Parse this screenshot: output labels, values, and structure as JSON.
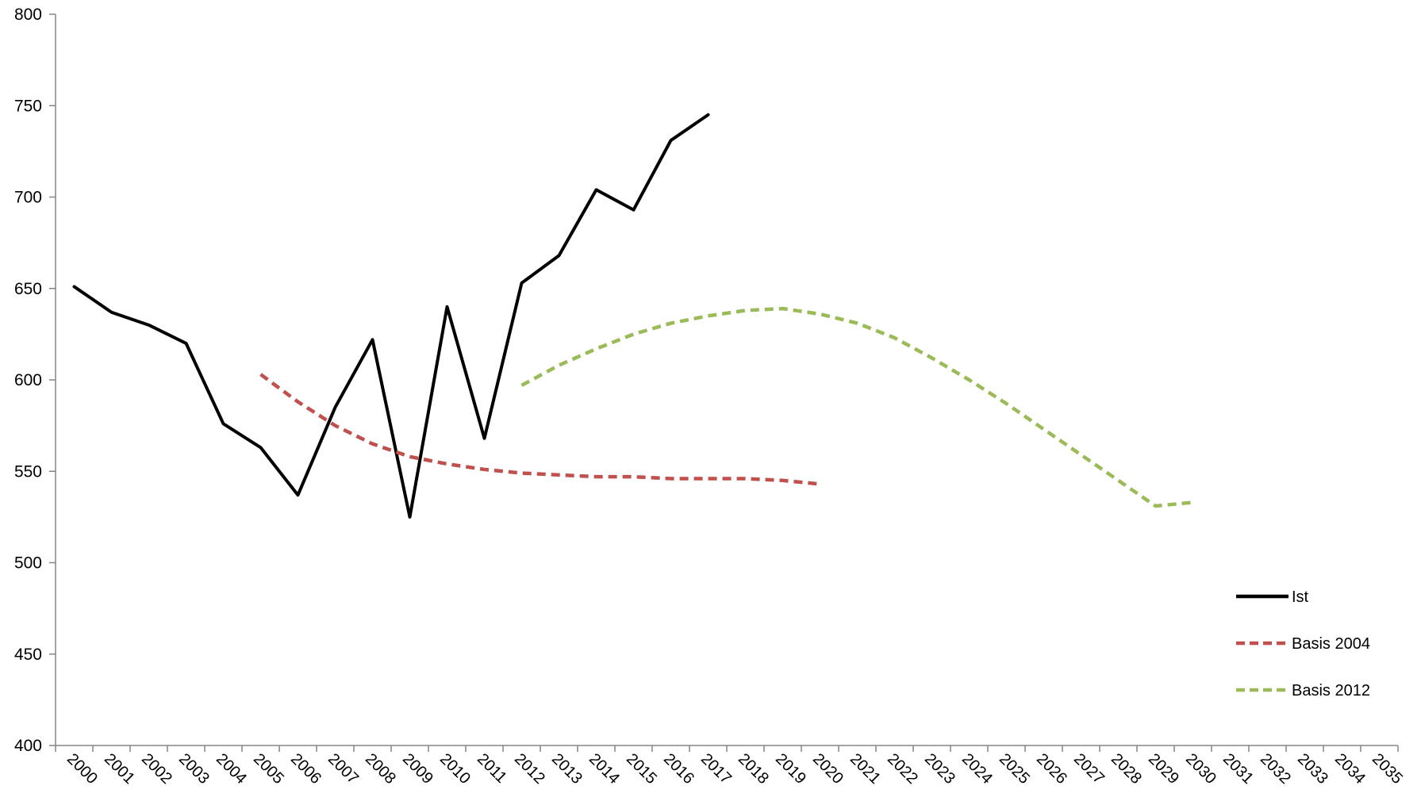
{
  "chart_data": {
    "type": "line",
    "title": "",
    "xlabel": "",
    "ylabel": "",
    "ylim": [
      400,
      800
    ],
    "yticks": [
      "400",
      "450",
      "500",
      "550",
      "600",
      "650",
      "700",
      "750",
      "800"
    ],
    "categories": [
      "2000",
      "2001",
      "2002",
      "2003",
      "2004",
      "2005",
      "2006",
      "2007",
      "2008",
      "2009",
      "2010",
      "2011",
      "2012",
      "2013",
      "2014",
      "2015",
      "2016",
      "2017",
      "2018",
      "2019",
      "2020",
      "2021",
      "2022",
      "2023",
      "2024",
      "2025",
      "2026",
      "2027",
      "2028",
      "2029",
      "2030",
      "2031",
      "2032",
      "2033",
      "2034",
      "2035"
    ],
    "grid": false,
    "legend_position": "right",
    "series": [
      {
        "name": "Ist",
        "color": "#000000",
        "dash": "solid",
        "values": [
          651,
          637,
          630,
          620,
          576,
          563,
          537,
          585,
          622,
          525,
          640,
          568,
          653,
          668,
          704,
          693,
          731,
          745,
          null,
          null,
          null,
          null,
          null,
          null,
          null,
          null,
          null,
          null,
          null,
          null,
          null,
          null,
          null,
          null,
          null,
          null
        ]
      },
      {
        "name": "Basis 2004",
        "color": "#c0504d",
        "dash": "dashed",
        "values": [
          null,
          null,
          null,
          null,
          null,
          603,
          588,
          575,
          565,
          558,
          554,
          551,
          549,
          548,
          547,
          547,
          546,
          546,
          546,
          545,
          543,
          null,
          null,
          null,
          null,
          null,
          null,
          null,
          null,
          null,
          null,
          null,
          null,
          null,
          null,
          null
        ]
      },
      {
        "name": "Basis 2012",
        "color": "#9bbb59",
        "dash": "dashed",
        "values": [
          null,
          null,
          null,
          null,
          null,
          null,
          null,
          null,
          null,
          null,
          null,
          null,
          597,
          608,
          617,
          625,
          631,
          635,
          638,
          639,
          636,
          631,
          623,
          612,
          600,
          587,
          573,
          559,
          545,
          531,
          533,
          null,
          null,
          null,
          null,
          null
        ]
      }
    ]
  }
}
